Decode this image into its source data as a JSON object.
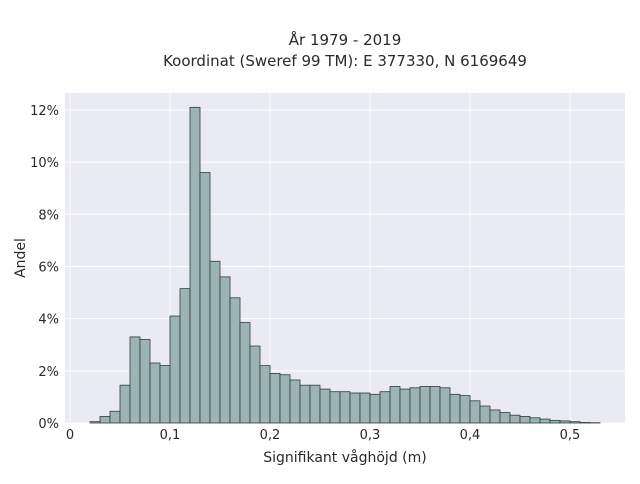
{
  "chart_data": {
    "type": "bar",
    "title": "År 1979 - 2019",
    "subtitle": "Koordinat (Sweref 99 TM): E 377330, N 6169649",
    "xlabel": "Signifikant våghöjd (m)",
    "ylabel": "Andel",
    "xlim": [
      -0.005,
      0.555
    ],
    "ylim": [
      0,
      0.1265
    ],
    "x_ticks": [
      0,
      0.1,
      0.2,
      0.3,
      0.4,
      0.5
    ],
    "x_tick_labels": [
      "0",
      "0,1",
      "0,2",
      "0,3",
      "0,4",
      "0,5"
    ],
    "y_ticks": [
      0,
      0.02,
      0.04,
      0.06,
      0.08,
      0.1,
      0.12
    ],
    "y_tick_labels": [
      "0%",
      "2%",
      "4%",
      "6%",
      "8%",
      "10%",
      "12%"
    ],
    "grid": true,
    "colors": {
      "background": "#eaeaf2",
      "bar_fill": "#9db4b4",
      "bar_edge": "#2f3b3b",
      "grid": "#ffffff"
    },
    "bin_edges": [
      0.02,
      0.03,
      0.04,
      0.05,
      0.06,
      0.07,
      0.08,
      0.09,
      0.1,
      0.11,
      0.12,
      0.13,
      0.14,
      0.15,
      0.16,
      0.17,
      0.18,
      0.19,
      0.2,
      0.21,
      0.22,
      0.23,
      0.24,
      0.25,
      0.26,
      0.27,
      0.28,
      0.29,
      0.3,
      0.31,
      0.32,
      0.33,
      0.34,
      0.35,
      0.36,
      0.37,
      0.38,
      0.39,
      0.4,
      0.41,
      0.42,
      0.43,
      0.44,
      0.45,
      0.46,
      0.47,
      0.48,
      0.49,
      0.5,
      0.51,
      0.52,
      0.53
    ],
    "values": [
      0.0005,
      0.0025,
      0.0045,
      0.0145,
      0.033,
      0.032,
      0.023,
      0.022,
      0.041,
      0.0515,
      0.121,
      0.096,
      0.062,
      0.056,
      0.048,
      0.0385,
      0.0295,
      0.022,
      0.019,
      0.0185,
      0.0165,
      0.0145,
      0.0145,
      0.013,
      0.012,
      0.012,
      0.0115,
      0.0115,
      0.011,
      0.012,
      0.014,
      0.013,
      0.0135,
      0.014,
      0.014,
      0.0135,
      0.011,
      0.0105,
      0.0085,
      0.0065,
      0.005,
      0.004,
      0.003,
      0.0025,
      0.002,
      0.0015,
      0.001,
      0.0008,
      0.0005,
      0.0002,
      0.0001
    ]
  }
}
